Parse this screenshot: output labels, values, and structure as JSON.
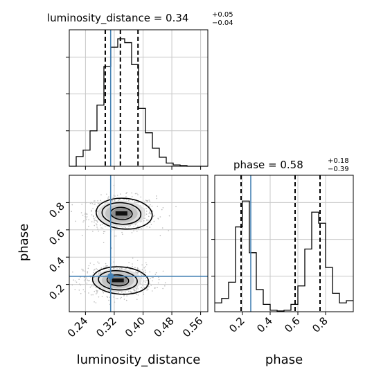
{
  "chart_data": {
    "type": "corner",
    "params": [
      "luminosity_distance",
      "phase"
    ],
    "truth": {
      "luminosity_distance": 0.31,
      "phase": 0.26
    },
    "diag": [
      {
        "param": "luminosity_distance",
        "title_main": "luminosity_distance = 0.34",
        "title_plus": "+0.05",
        "title_minus": "−0.04",
        "range": [
          0.195,
          0.58
        ],
        "quantiles": [
          0.295,
          0.337,
          0.386
        ],
        "hist_edges": [
          0.195,
          0.21425,
          0.2335,
          0.25275,
          0.272,
          0.29125,
          0.3105,
          0.32975,
          0.349,
          0.36825,
          0.3875,
          0.40675,
          0.426,
          0.44525,
          0.4645,
          0.48375,
          0.503,
          0.52225,
          0.5415,
          0.56075,
          0.58
        ],
        "hist_counts": [
          0,
          15,
          25,
          55,
          95,
          155,
          185,
          198,
          192,
          158,
          90,
          52,
          28,
          14,
          5,
          2,
          1,
          0,
          0,
          0
        ],
        "hist_ymax": 212
      },
      {
        "param": "phase",
        "title_main": "phase = 0.58",
        "title_plus": "+0.18",
        "title_minus": "−0.39",
        "range": [
          0.0,
          1.0
        ],
        "quantiles": [
          0.19,
          0.58,
          0.76
        ],
        "hist_edges": [
          0.0,
          0.05,
          0.1,
          0.15,
          0.2,
          0.25,
          0.3,
          0.35,
          0.4,
          0.45,
          0.5,
          0.55,
          0.6,
          0.65,
          0.7,
          0.75,
          0.8,
          0.85,
          0.9,
          0.95,
          1.0
        ],
        "hist_counts": [
          12,
          18,
          40,
          115,
          150,
          80,
          30,
          10,
          2,
          1,
          2,
          10,
          35,
          85,
          135,
          120,
          60,
          25,
          12,
          15
        ],
        "hist_ymax": 185
      }
    ],
    "joint": {
      "x_param": "luminosity_distance",
      "y_param": "phase",
      "xlim": [
        0.195,
        0.58
      ],
      "ylim": [
        0.0,
        1.0
      ],
      "modes": [
        {
          "x": 0.34,
          "y": 0.72,
          "sx": 0.03,
          "sy": 0.045
        },
        {
          "x": 0.33,
          "y": 0.23,
          "sx": 0.03,
          "sy": 0.04
        }
      ]
    },
    "axes": {
      "luminosity_distance": {
        "label": "luminosity_distance",
        "ticks": [
          0.24,
          0.32,
          0.4,
          0.48,
          0.56
        ],
        "tick_labels": [
          "0.24",
          "0.32",
          "0.40",
          "0.48",
          "0.56"
        ]
      },
      "phase_x": {
        "label": "phase",
        "ticks": [
          0.2,
          0.4,
          0.6,
          0.8
        ],
        "tick_labels": [
          "0.2",
          "0.4",
          "0.6",
          "0.8"
        ]
      },
      "phase_y": {
        "label": "phase",
        "ticks": [
          0.2,
          0.4,
          0.6,
          0.8
        ],
        "tick_labels": [
          "0.2",
          "0.4",
          "0.6",
          "0.8"
        ]
      }
    },
    "grid": true,
    "colors": {
      "truth": "#4682b4",
      "hist": "#000000",
      "grid": "#c8c8c8"
    }
  }
}
